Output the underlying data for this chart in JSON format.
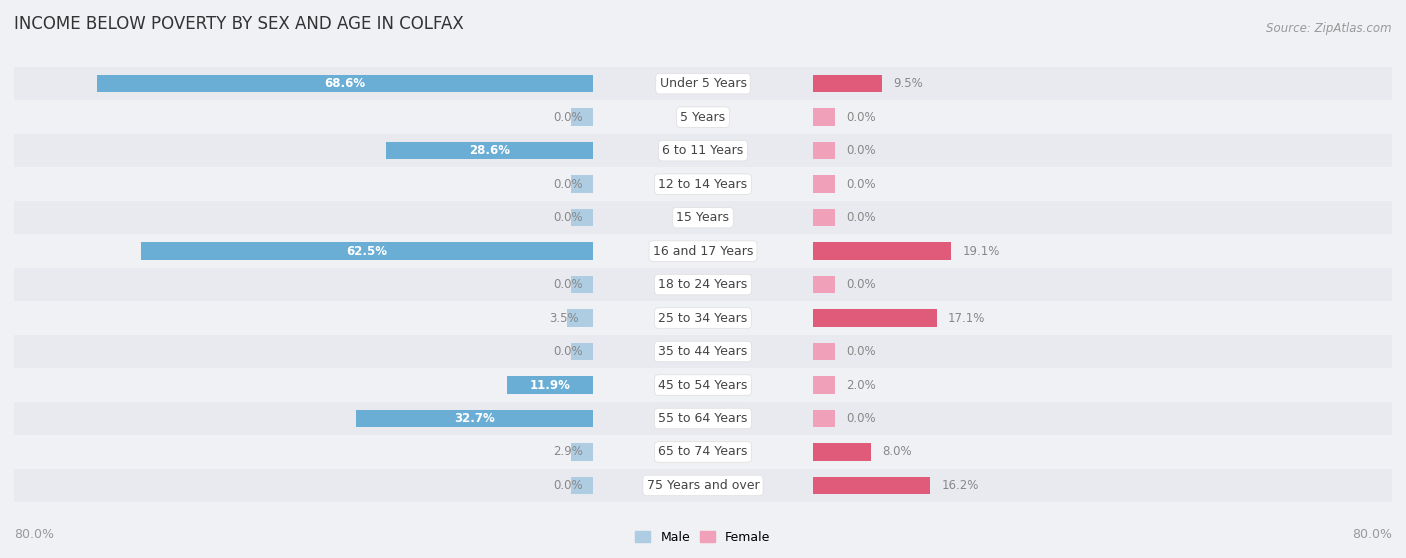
{
  "title": "INCOME BELOW POVERTY BY SEX AND AGE IN COLFAX",
  "source": "Source: ZipAtlas.com",
  "categories": [
    "Under 5 Years",
    "5 Years",
    "6 to 11 Years",
    "12 to 14 Years",
    "15 Years",
    "16 and 17 Years",
    "18 to 24 Years",
    "25 to 34 Years",
    "35 to 44 Years",
    "45 to 54 Years",
    "55 to 64 Years",
    "65 to 74 Years",
    "75 Years and over"
  ],
  "male": [
    68.6,
    0.0,
    28.6,
    0.0,
    0.0,
    62.5,
    0.0,
    3.5,
    0.0,
    11.9,
    32.7,
    2.9,
    0.0
  ],
  "female": [
    9.5,
    0.0,
    0.0,
    0.0,
    0.0,
    19.1,
    0.0,
    17.1,
    0.0,
    2.0,
    0.0,
    8.0,
    16.2
  ],
  "male_color_strong": "#6aaed6",
  "male_color_weak": "#aecde2",
  "female_color_strong": "#e05a7a",
  "female_color_weak": "#f0a0b8",
  "row_bg_odd": "#e8eaf0",
  "row_bg_even": "#f0f1f5",
  "bg_color": "#f0f1f5",
  "xlim": 80.0,
  "min_bar": 3.0,
  "bar_height": 0.52,
  "legend_male": "Male",
  "legend_female": "Female",
  "title_fontsize": 12,
  "label_fontsize": 8.5,
  "axis_fontsize": 9,
  "category_fontsize": 9,
  "source_fontsize": 8.5,
  "threshold_strong": 5.0
}
